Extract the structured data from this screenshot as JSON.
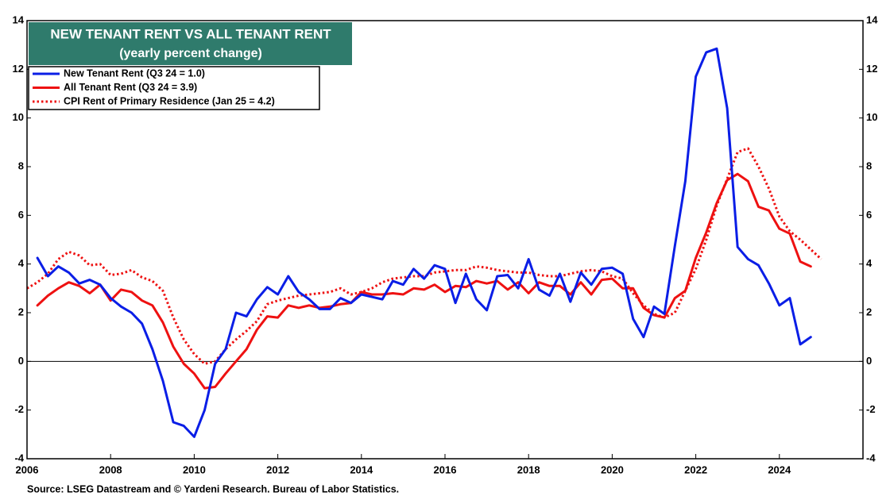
{
  "chart_data": {
    "type": "line",
    "title": "NEW TENANT RENT VS ALL TENANT RENT",
    "subtitle": "(yearly percent change)",
    "source": "Source: LSEG Datastream and © Yardeni Research. Bureau of Labor Statistics.",
    "xlim": [
      2006,
      2026
    ],
    "xticks": [
      2006,
      2008,
      2010,
      2012,
      2014,
      2016,
      2018,
      2020,
      2022,
      2024
    ],
    "ylim": [
      -4,
      14
    ],
    "yticks": [
      -4,
      -2,
      0,
      2,
      4,
      6,
      8,
      10,
      12,
      14
    ],
    "y2lim": [
      -4,
      14
    ],
    "y2ticks": [
      -4,
      -2,
      0,
      2,
      4,
      6,
      8,
      10,
      12,
      14
    ],
    "legend": "upper left",
    "series": [
      {
        "name": "New Tenant Rent (Q3 24 = 1.0)",
        "color": "#0a1ee6",
        "style": "solid",
        "x": [
          2006.25,
          2006.5,
          2006.75,
          2007,
          2007.25,
          2007.5,
          2007.75,
          2008,
          2008.25,
          2008.5,
          2008.75,
          2009,
          2009.25,
          2009.5,
          2009.75,
          2010,
          2010.25,
          2010.5,
          2010.75,
          2011,
          2011.25,
          2011.5,
          2011.75,
          2012,
          2012.25,
          2012.5,
          2012.75,
          2013,
          2013.25,
          2013.5,
          2013.75,
          2014,
          2014.25,
          2014.5,
          2014.75,
          2015,
          2015.25,
          2015.5,
          2015.75,
          2016,
          2016.25,
          2016.5,
          2016.75,
          2017,
          2017.25,
          2017.5,
          2017.75,
          2018,
          2018.25,
          2018.5,
          2018.75,
          2019,
          2019.25,
          2019.5,
          2019.75,
          2020,
          2020.25,
          2020.5,
          2020.75,
          2021,
          2021.25,
          2021.5,
          2021.75,
          2022,
          2022.25,
          2022.5,
          2022.75,
          2023,
          2023.25,
          2023.5,
          2023.75,
          2024,
          2024.25,
          2024.5,
          2024.75
        ],
        "values": [
          4.25,
          3.5,
          3.9,
          3.65,
          3.2,
          3.35,
          3.15,
          2.6,
          2.25,
          2.0,
          1.55,
          0.5,
          -0.8,
          -2.5,
          -2.65,
          -3.1,
          -2.0,
          -0.1,
          0.5,
          2.0,
          1.85,
          2.55,
          3.05,
          2.75,
          3.5,
          2.85,
          2.55,
          2.15,
          2.15,
          2.6,
          2.4,
          2.75,
          2.65,
          2.55,
          3.3,
          3.15,
          3.8,
          3.4,
          3.95,
          3.8,
          2.4,
          3.6,
          2.55,
          2.1,
          3.5,
          3.55,
          3.0,
          4.2,
          2.95,
          2.7,
          3.6,
          2.45,
          3.65,
          3.15,
          3.8,
          3.85,
          3.6,
          1.75,
          1.0,
          2.25,
          1.95,
          4.75,
          7.4,
          11.7,
          12.7,
          12.85,
          10.4,
          4.7,
          4.2,
          3.95,
          3.2,
          2.3,
          2.6,
          0.7,
          1.0
        ]
      },
      {
        "name": "All Tenant Rent (Q3 24 = 3.9)",
        "color": "#ee1111",
        "style": "solid",
        "x": [
          2006.25,
          2006.5,
          2006.75,
          2007,
          2007.25,
          2007.5,
          2007.75,
          2008,
          2008.25,
          2008.5,
          2008.75,
          2009,
          2009.25,
          2009.5,
          2009.75,
          2010,
          2010.25,
          2010.5,
          2010.75,
          2011,
          2011.25,
          2011.5,
          2011.75,
          2012,
          2012.25,
          2012.5,
          2012.75,
          2013,
          2013.25,
          2013.5,
          2013.75,
          2014,
          2014.25,
          2014.5,
          2014.75,
          2015,
          2015.25,
          2015.5,
          2015.75,
          2016,
          2016.25,
          2016.5,
          2016.75,
          2017,
          2017.25,
          2017.5,
          2017.75,
          2018,
          2018.25,
          2018.5,
          2018.75,
          2019,
          2019.25,
          2019.5,
          2019.75,
          2020,
          2020.25,
          2020.5,
          2020.75,
          2021,
          2021.25,
          2021.5,
          2021.75,
          2022,
          2022.25,
          2022.5,
          2022.75,
          2023,
          2023.25,
          2023.5,
          2023.75,
          2024,
          2024.25,
          2024.5,
          2024.75
        ],
        "values": [
          2.3,
          2.7,
          3.0,
          3.25,
          3.1,
          2.8,
          3.15,
          2.5,
          2.95,
          2.85,
          2.5,
          2.3,
          1.6,
          0.6,
          -0.1,
          -0.5,
          -1.1,
          -1.05,
          -0.5,
          0.0,
          0.5,
          1.3,
          1.85,
          1.8,
          2.3,
          2.2,
          2.3,
          2.2,
          2.25,
          2.35,
          2.4,
          2.85,
          2.75,
          2.75,
          2.8,
          2.75,
          3.0,
          2.95,
          3.15,
          2.85,
          3.1,
          3.05,
          3.3,
          3.2,
          3.3,
          2.95,
          3.25,
          2.8,
          3.25,
          3.1,
          3.1,
          2.75,
          3.25,
          2.75,
          3.35,
          3.4,
          3.0,
          3.0,
          2.2,
          1.9,
          1.8,
          2.6,
          2.9,
          4.25,
          5.3,
          6.5,
          7.45,
          7.7,
          7.4,
          6.35,
          6.2,
          5.45,
          5.25,
          4.1,
          3.9
        ]
      },
      {
        "name": "CPI Rent of Primary Residence (Jan 25 = 4.2)",
        "color": "#ee1111",
        "style": "dotted",
        "x": [
          2006,
          2006.25,
          2006.5,
          2006.75,
          2007,
          2007.25,
          2007.5,
          2007.75,
          2008,
          2008.25,
          2008.5,
          2008.75,
          2009,
          2009.25,
          2009.5,
          2009.75,
          2010,
          2010.25,
          2010.5,
          2010.75,
          2011,
          2011.25,
          2011.5,
          2011.75,
          2012,
          2012.25,
          2012.5,
          2012.75,
          2013,
          2013.25,
          2013.5,
          2013.75,
          2014,
          2014.25,
          2014.5,
          2014.75,
          2015,
          2015.25,
          2015.5,
          2015.75,
          2016,
          2016.25,
          2016.5,
          2016.75,
          2017,
          2017.25,
          2017.5,
          2017.75,
          2018,
          2018.25,
          2018.5,
          2018.75,
          2019,
          2019.25,
          2019.5,
          2019.75,
          2020,
          2020.25,
          2020.5,
          2020.75,
          2021,
          2021.25,
          2021.5,
          2021.75,
          2022,
          2022.25,
          2022.5,
          2022.75,
          2023,
          2023.25,
          2023.5,
          2023.75,
          2024,
          2024.25,
          2024.5,
          2024.75,
          2025
        ],
        "values": [
          3.0,
          3.25,
          3.6,
          4.2,
          4.5,
          4.35,
          3.95,
          4.0,
          3.55,
          3.6,
          3.75,
          3.45,
          3.3,
          2.9,
          1.8,
          0.9,
          0.3,
          -0.1,
          0.0,
          0.5,
          0.9,
          1.25,
          1.65,
          2.35,
          2.5,
          2.6,
          2.7,
          2.75,
          2.8,
          2.85,
          3.0,
          2.75,
          2.85,
          3.0,
          3.25,
          3.4,
          3.45,
          3.5,
          3.5,
          3.65,
          3.7,
          3.75,
          3.75,
          3.9,
          3.85,
          3.75,
          3.7,
          3.65,
          3.65,
          3.55,
          3.5,
          3.5,
          3.6,
          3.7,
          3.75,
          3.7,
          3.5,
          3.4,
          2.8,
          2.3,
          1.95,
          1.8,
          2.0,
          2.9,
          3.8,
          5.0,
          6.4,
          7.5,
          8.6,
          8.75,
          8.0,
          7.1,
          5.95,
          5.35,
          5.0,
          4.6,
          4.2
        ]
      }
    ]
  }
}
